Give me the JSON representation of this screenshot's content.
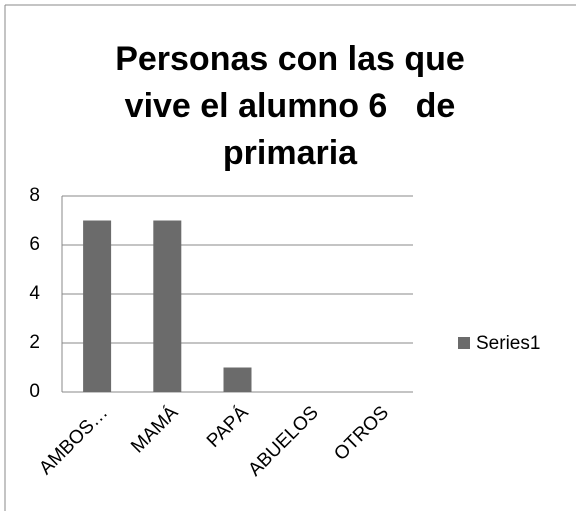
{
  "chart_data": {
    "type": "bar",
    "title": "Personas con las que vive el alumno 6   de primaria",
    "categories": [
      "AMBOS…",
      "MAMÁ",
      "PAPÁ",
      "ABUELOS",
      "OTROS"
    ],
    "series": [
      {
        "name": "Series1",
        "color": "#6b6b6b",
        "values": [
          7,
          7,
          1,
          0,
          0
        ]
      }
    ],
    "ylim": [
      0,
      8
    ],
    "yticks": [
      0,
      2,
      4,
      6,
      8
    ],
    "grid": true,
    "legend": "right"
  }
}
